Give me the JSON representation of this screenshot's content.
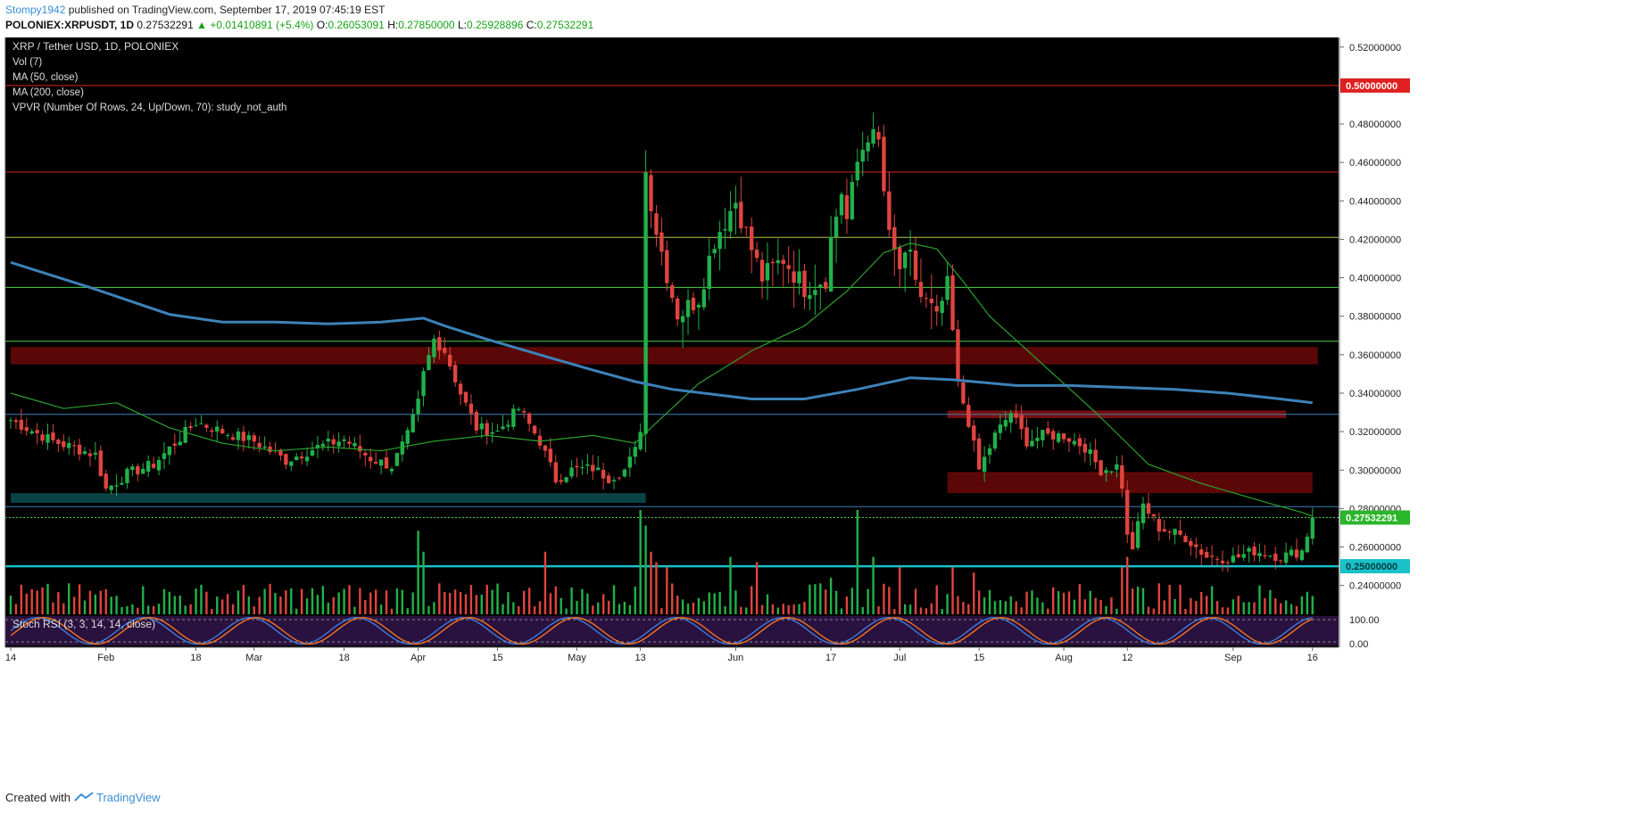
{
  "header": {
    "user": "Stompy1942",
    "published": "published on TradingView.com, September 17, 2019 07:45:19 EST",
    "symbol": "POLONIEX:XRPUSDT, 1D",
    "last": "0.27532291",
    "change": "▲ +0.01410891 (+5.4%)",
    "o_label": "O:",
    "o": "0.26053091",
    "h_label": "H:",
    "h": "0.27850000",
    "l_label": "L:",
    "l": "0.25928896",
    "c_label": "C:",
    "c": "0.27532291"
  },
  "legend": [
    "XRP / Tether USD, 1D, POLONIEX",
    "Vol (7)",
    "MA (50, close)",
    "MA (200, close)",
    "VPVR (Number Of Rows, 24, Up/Down, 70): study_not_auth"
  ],
  "stoch_label": "Stoch RSI (3, 3, 14, 14, close)",
  "footer": {
    "created": "Created with",
    "brand": "TradingView"
  },
  "colors": {
    "up": "#21b14a",
    "down": "#e0443e",
    "ma50": "#2ca02c",
    "ma200": "#3d82b8",
    "bg": "#000000",
    "red_zone": "#7a0a0a",
    "cyan": "#19c2c8"
  },
  "chart_data": {
    "type": "candlestick",
    "title": "XRP / Tether USD, 1D, POLONIEX",
    "ylim": [
      0.225,
      0.525
    ],
    "y_ticks": [
      "0.52000000",
      "0.48000000",
      "0.46000000",
      "0.44000000",
      "0.42000000",
      "0.40000000",
      "0.38000000",
      "0.36000000",
      "0.34000000",
      "0.32000000",
      "0.30000000",
      "0.28000000",
      "0.26000000",
      "0.24000000"
    ],
    "x_ticks": [
      "14",
      "Feb",
      "18",
      "Mar",
      "18",
      "Apr",
      "15",
      "May",
      "13",
      "Jun",
      "17",
      "Jul",
      "15",
      "Aug",
      "12",
      "Sep",
      "16"
    ],
    "x_tick_days": [
      0,
      18,
      35,
      46,
      63,
      77,
      92,
      107,
      119,
      137,
      155,
      168,
      183,
      199,
      211,
      231,
      246
    ],
    "price_labels": [
      {
        "value": 0.5,
        "text": "0.50000000",
        "style": "red"
      },
      {
        "value": 0.27532291,
        "text": "0.27532291",
        "style": "green"
      },
      {
        "value": 0.25,
        "text": "0.25000000",
        "style": "cyan"
      }
    ],
    "anchors": {
      "days": [
        0,
        8,
        16,
        18,
        22,
        27,
        35,
        40,
        46,
        52,
        58,
        63,
        68,
        72,
        75,
        77,
        78,
        80,
        82,
        85,
        88,
        92,
        96,
        100,
        103,
        106,
        110,
        113,
        116,
        118,
        119,
        120,
        122,
        126,
        130,
        133,
        137,
        140,
        142,
        146,
        150,
        154,
        155,
        157,
        158,
        160,
        162,
        164,
        166,
        168,
        170,
        172,
        175,
        177,
        178,
        179,
        181,
        183,
        186,
        189,
        192,
        195,
        199,
        203,
        206,
        209,
        210,
        211,
        212,
        214,
        217,
        222,
        226,
        231,
        235,
        240,
        244,
        246
      ],
      "close": [
        0.326,
        0.315,
        0.308,
        0.29,
        0.298,
        0.303,
        0.325,
        0.32,
        0.315,
        0.305,
        0.312,
        0.316,
        0.306,
        0.302,
        0.318,
        0.335,
        0.35,
        0.368,
        0.362,
        0.34,
        0.322,
        0.32,
        0.332,
        0.315,
        0.295,
        0.3,
        0.301,
        0.296,
        0.3,
        0.31,
        0.322,
        0.455,
        0.425,
        0.38,
        0.39,
        0.42,
        0.44,
        0.415,
        0.4,
        0.41,
        0.395,
        0.4,
        0.42,
        0.445,
        0.43,
        0.46,
        0.475,
        0.47,
        0.42,
        0.405,
        0.41,
        0.39,
        0.38,
        0.395,
        0.372,
        0.345,
        0.325,
        0.3,
        0.318,
        0.33,
        0.315,
        0.318,
        0.318,
        0.312,
        0.3,
        0.302,
        0.292,
        0.265,
        0.26,
        0.282,
        0.27,
        0.265,
        0.255,
        0.254,
        0.258,
        0.255,
        0.258,
        0.2753
      ]
    },
    "series": [
      {
        "name": "MA (50, close)",
        "x": [
          0,
          10,
          20,
          30,
          40,
          50,
          60,
          70,
          80,
          90,
          100,
          110,
          118,
          121,
          130,
          140,
          150,
          158,
          165,
          170,
          175,
          180,
          185,
          195,
          205,
          215,
          225,
          235,
          240,
          244,
          246
        ],
        "values": [
          0.34,
          0.332,
          0.335,
          0.322,
          0.314,
          0.31,
          0.312,
          0.31,
          0.315,
          0.318,
          0.315,
          0.318,
          0.314,
          0.322,
          0.345,
          0.362,
          0.375,
          0.393,
          0.413,
          0.418,
          0.415,
          0.398,
          0.38,
          0.355,
          0.33,
          0.303,
          0.293,
          0.285,
          0.281,
          0.278,
          0.276
        ]
      },
      {
        "name": "MA (200, close)",
        "x": [
          0,
          15,
          30,
          40,
          50,
          60,
          70,
          78,
          82,
          90,
          100,
          110,
          118,
          125,
          140,
          150,
          160,
          170,
          178,
          190,
          200,
          210,
          220,
          230,
          240,
          246
        ],
        "values": [
          0.408,
          0.395,
          0.381,
          0.377,
          0.377,
          0.376,
          0.377,
          0.379,
          0.375,
          0.368,
          0.36,
          0.352,
          0.346,
          0.342,
          0.337,
          0.337,
          0.342,
          0.348,
          0.347,
          0.344,
          0.344,
          0.343,
          0.342,
          0.34,
          0.337,
          0.335
        ]
      }
    ],
    "levels": [
      {
        "value": 0.5,
        "color": "#e02020",
        "kind": "line"
      },
      {
        "value": 0.455,
        "color": "#e02020",
        "kind": "line"
      },
      {
        "value": 0.421,
        "color": "#b7c44a",
        "kind": "line"
      },
      {
        "value": 0.395,
        "color": "#4ad04a",
        "kind": "line"
      },
      {
        "value": 0.367,
        "color": "#4ad04a",
        "kind": "line"
      },
      {
        "value": 0.329,
        "color": "#3d82b8",
        "kind": "line"
      },
      {
        "value": 0.281,
        "color": "#3d82b8",
        "kind": "line"
      },
      {
        "value": 0.25,
        "color": "#19c2c8",
        "kind": "line"
      }
    ],
    "zones": [
      {
        "low": 0.355,
        "high": 0.364,
        "from": 0,
        "to": 247,
        "color": "#6b0808"
      },
      {
        "low": 0.327,
        "high": 0.331,
        "from": 177,
        "to": 241,
        "color": "#8a1010"
      },
      {
        "low": 0.288,
        "high": 0.299,
        "from": 177,
        "to": 246,
        "color": "#6b0808"
      },
      {
        "low": 0.283,
        "high": 0.288,
        "from": 0,
        "to": 120,
        "color": "#0d4d52"
      }
    ],
    "stoch_rsi": {
      "levels": [
        "100.00",
        "0.00"
      ],
      "ylim": [
        0,
        100
      ]
    }
  }
}
